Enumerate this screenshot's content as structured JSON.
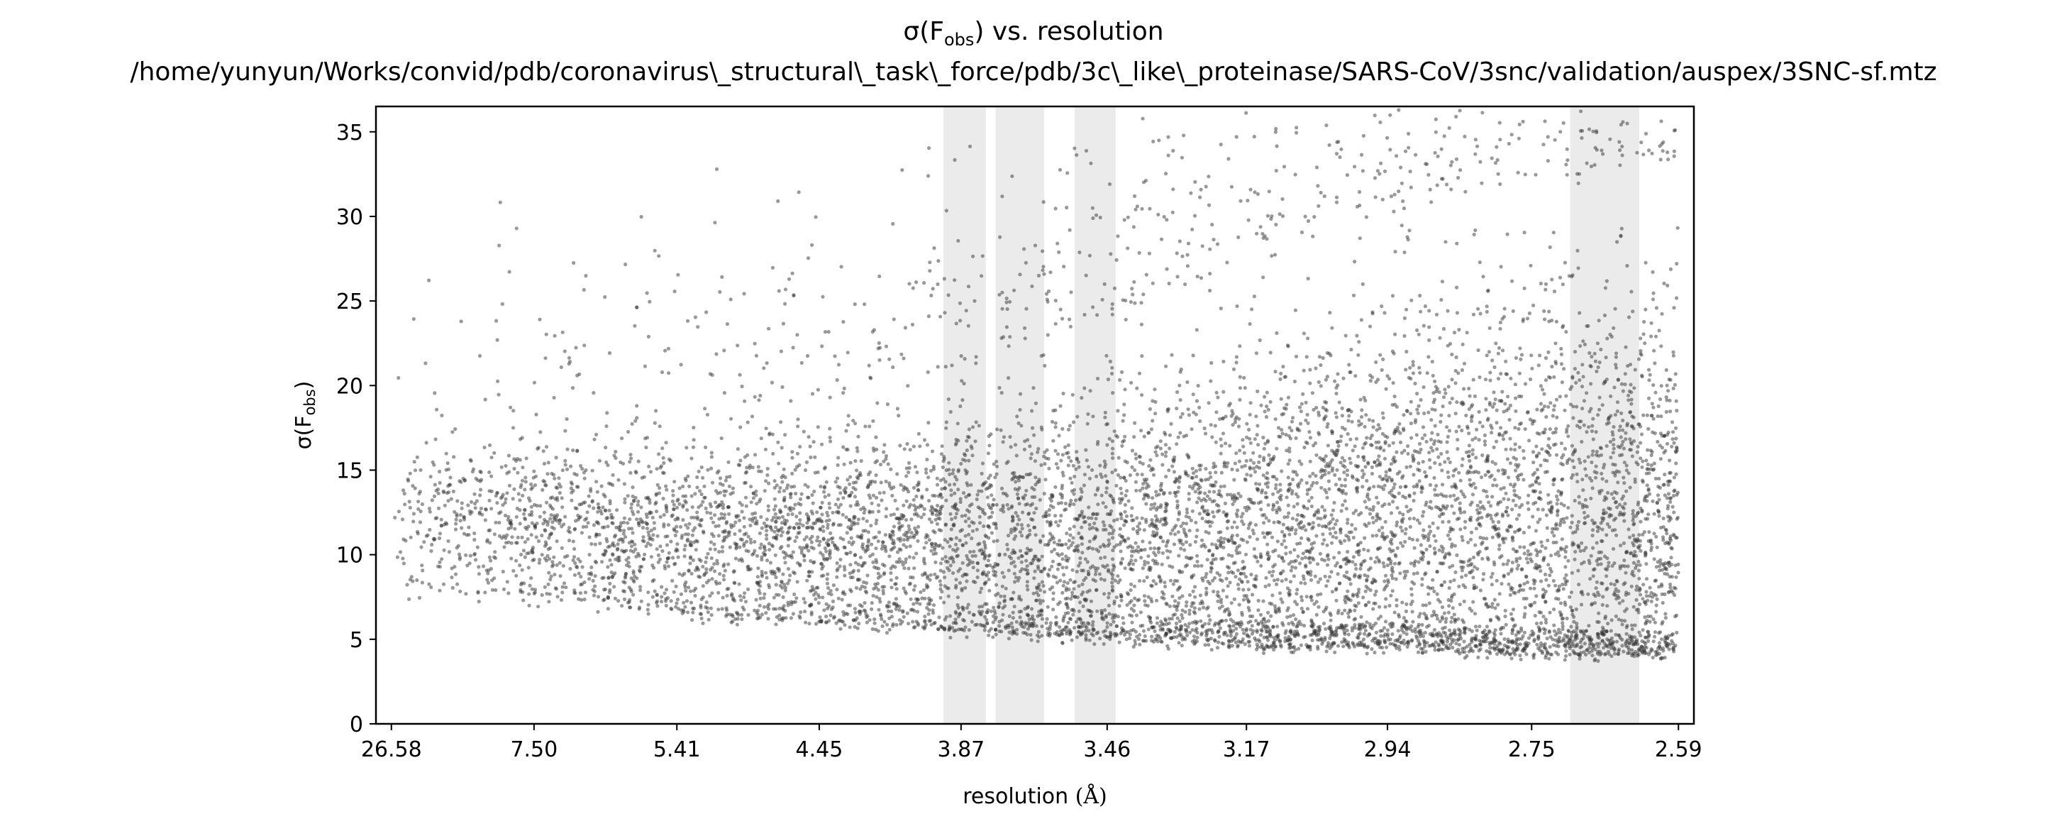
{
  "chart_data": {
    "type": "scatter",
    "title_line1_prefix": "σ(F",
    "title_line1_sub": "obs",
    "title_line1_suffix": ") vs. resolution",
    "title_line2": "/home/yunyun/Works/convid/pdb/coronavirus\\_structural\\_task\\_force/pdb/3c\\_like\\_proteinase/SARS-CoV/3snc/validation/auspex/3SNC-sf.mtz",
    "xlabel_text": "resolution ",
    "xlabel_unit": "(Å)",
    "ylabel_prefix": "σ(F",
    "ylabel_sub": "obs",
    "ylabel_suffix": ")",
    "x_scale": "reciprocal-squared (1/d²)",
    "x_ticks": [
      "26.58",
      "7.50",
      "5.41",
      "4.45",
      "3.87",
      "3.46",
      "3.17",
      "2.94",
      "2.75",
      "2.59"
    ],
    "x_tick_values": [
      26.58,
      7.5,
      5.41,
      4.45,
      3.87,
      3.46,
      3.17,
      2.94,
      2.75,
      2.59
    ],
    "xlim": [
      26.58,
      2.59
    ],
    "y_ticks": [
      "0",
      "5",
      "10",
      "15",
      "20",
      "25",
      "30",
      "35"
    ],
    "y_tick_values": [
      0,
      5,
      10,
      15,
      20,
      25,
      30,
      35
    ],
    "ylim": [
      0,
      36.5
    ],
    "grid": false,
    "point_color": "#333333",
    "shaded_band_color": "#ebebeb",
    "shaded_resolution_bands": [
      [
        3.93,
        3.79
      ],
      [
        3.76,
        3.62
      ],
      [
        3.54,
        3.44
      ],
      [
        2.705,
        2.63
      ]
    ],
    "density_profile": [
      {
        "resolution": 25.0,
        "lower_edge": 8,
        "main_band": 12,
        "upper_edge": 19
      },
      {
        "resolution": 7.5,
        "lower_edge": 7.5,
        "main_band": 12,
        "upper_edge": 17
      },
      {
        "resolution": 5.41,
        "lower_edge": 6.5,
        "main_band": 11,
        "upper_edge": 18
      },
      {
        "resolution": 4.45,
        "lower_edge": 6,
        "main_band": 11,
        "upper_edge": 19
      },
      {
        "resolution": 3.87,
        "lower_edge": 5.5,
        "main_band": 11,
        "upper_edge": 21
      },
      {
        "resolution": 3.46,
        "lower_edge": 5,
        "main_band": 11,
        "upper_edge": 24
      },
      {
        "resolution": 3.17,
        "lower_edge": 4.5,
        "main_band": 11,
        "upper_edge": 27
      },
      {
        "resolution": 2.94,
        "lower_edge": 4.5,
        "main_band": 12,
        "upper_edge": 30
      },
      {
        "resolution": 2.75,
        "lower_edge": 4,
        "main_band": 12,
        "upper_edge": 32
      },
      {
        "resolution": 2.59,
        "lower_edge": 4,
        "main_band": 12,
        "upper_edge": 33
      }
    ]
  }
}
